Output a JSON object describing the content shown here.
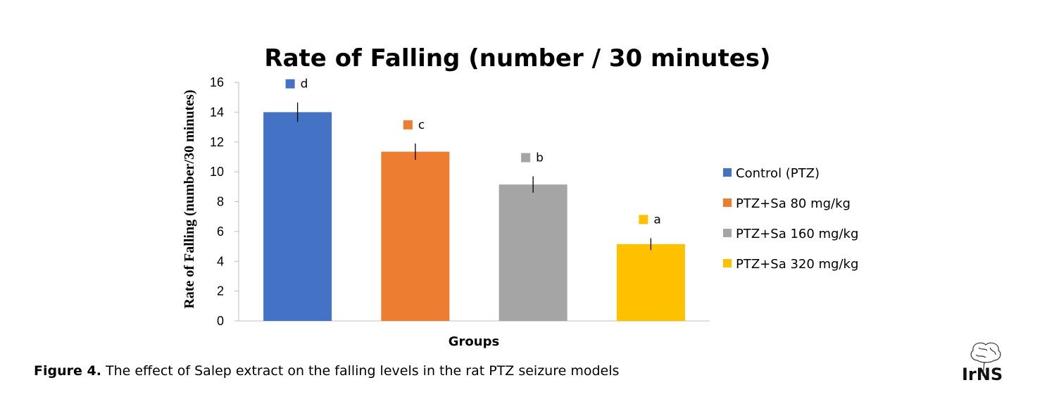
{
  "chart_data": {
    "type": "bar",
    "title": "Rate of Falling (number / 30 minutes)",
    "xlabel": "Groups",
    "ylabel": "Rate of  Falling (number/30 minutes)",
    "ylim": [
      0,
      16
    ],
    "yticks": [
      0,
      2,
      4,
      6,
      8,
      10,
      12,
      14,
      16
    ],
    "grid": false,
    "legend_position": "right",
    "series": [
      {
        "name": "Control (PTZ)",
        "value": 14.0,
        "error": 0.65,
        "sig": "d",
        "color": "#4472C4"
      },
      {
        "name": "PTZ+Sa 80 mg/kg",
        "value": 11.35,
        "error": 0.55,
        "sig": "c",
        "color": "#ED7D31"
      },
      {
        "name": "PTZ+Sa 160 mg/kg",
        "value": 9.15,
        "error": 0.55,
        "sig": "b",
        "color": "#A5A5A5"
      },
      {
        "name": "PTZ+Sa 320 mg/kg",
        "value": 5.15,
        "error": 0.4,
        "sig": "a",
        "color": "#FFC000"
      }
    ]
  },
  "caption": {
    "lead": "Figure 4.",
    "text": " The effect of Salep extract on the falling levels in the rat PTZ seizure models"
  },
  "logo": {
    "text": "IrNS",
    "icon": "brain-icon"
  }
}
